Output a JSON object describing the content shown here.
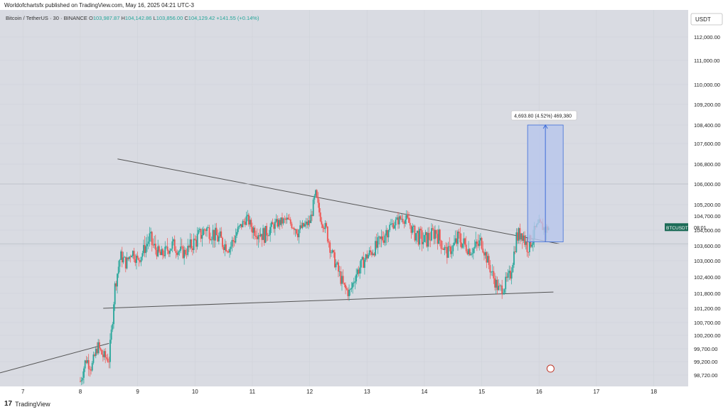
{
  "header": {
    "publisher_line": "Worldofchartsfx published on TradingView.com, May 16, 2025 04:21 UTC-3"
  },
  "legend": {
    "symbol": "Bitcoin / TetherUS · 30 · BINANCE",
    "o_label": "O",
    "o_value": "103,987.87",
    "h_label": "H",
    "h_value": "104,142.86",
    "l_label": "L",
    "l_value": "103,856.00",
    "c_label": "C",
    "c_value": "104,129.42",
    "change": "+141.55 (+0.14%)"
  },
  "footer": {
    "brand": "TradingView",
    "logo": "17"
  },
  "colors": {
    "up": "#26a69a",
    "down": "#ef5350",
    "grid": "#d6d8de",
    "bg": "#ffffff",
    "measure_fill": "#b7c6ec",
    "measure_line": "#3d6dd8",
    "price_tag": "#1b6b57"
  },
  "chart_data": {
    "type": "candlestick",
    "currency_label": "USDT",
    "y_ticks": [
      112000,
      111000,
      110000,
      109200,
      108400,
      107600,
      106800,
      106000,
      105200,
      104700,
      104000,
      103600,
      103000,
      102400,
      101800,
      101200,
      100700,
      100200,
      99700,
      99200,
      98720
    ],
    "y_tick_labels": [
      "112,000.00",
      "111,000.00",
      "110,000.00",
      "109,200.00",
      "108,400.00",
      "107,600.00",
      "106,800.00",
      "106,000.00",
      "105,200.00",
      "104,700.00",
      "104,000.00",
      "103,600.00",
      "103,000.00",
      "102,400.00",
      "101,800.00",
      "101,200.00",
      "100,700.00",
      "100,200.00",
      "99,700.00",
      "99,200.00",
      "98,720.00"
    ],
    "x_ticks": [
      7,
      8,
      9,
      10,
      11,
      12,
      13,
      14,
      15,
      16,
      17,
      18
    ],
    "x_tick_labels": [
      "7",
      "8",
      "9",
      "10",
      "11",
      "12",
      "13",
      "14",
      "15",
      "16",
      "17",
      "18"
    ],
    "x_range": [
      6.6,
      18.6
    ],
    "grid": true,
    "current_price": {
      "symbol": "BTCUSDT",
      "countdown": "08:01",
      "price": 104129.42
    },
    "closes_path": [
      [
        8.0,
        98500
      ],
      [
        8.1,
        99300
      ],
      [
        8.2,
        99000
      ],
      [
        8.3,
        99800
      ],
      [
        8.4,
        99400
      ],
      [
        8.5,
        99300
      ],
      [
        8.55,
        100500
      ],
      [
        8.6,
        102000
      ],
      [
        8.7,
        103200
      ],
      [
        8.8,
        102900
      ],
      [
        8.9,
        103400
      ],
      [
        9.0,
        103000
      ],
      [
        9.2,
        103800
      ],
      [
        9.4,
        103200
      ],
      [
        9.6,
        103600
      ],
      [
        9.8,
        103300
      ],
      [
        10.0,
        103700
      ],
      [
        10.2,
        104100
      ],
      [
        10.4,
        103800
      ],
      [
        10.6,
        103500
      ],
      [
        10.8,
        104200
      ],
      [
        10.9,
        104600
      ],
      [
        11.0,
        104100
      ],
      [
        11.2,
        103900
      ],
      [
        11.4,
        104300
      ],
      [
        11.6,
        104500
      ],
      [
        11.8,
        104000
      ],
      [
        12.0,
        104400
      ],
      [
        12.1,
        105600
      ],
      [
        12.2,
        104500
      ],
      [
        12.3,
        104000
      ],
      [
        12.4,
        103200
      ],
      [
        12.6,
        102000
      ],
      [
        12.7,
        101800
      ],
      [
        12.8,
        102500
      ],
      [
        13.0,
        103200
      ],
      [
        13.2,
        103600
      ],
      [
        13.4,
        104200
      ],
      [
        13.6,
        104600
      ],
      [
        13.7,
        104500
      ],
      [
        13.8,
        104000
      ],
      [
        14.0,
        103700
      ],
      [
        14.2,
        104000
      ],
      [
        14.4,
        103300
      ],
      [
        14.6,
        103800
      ],
      [
        14.8,
        103400
      ],
      [
        15.0,
        103700
      ],
      [
        15.1,
        103000
      ],
      [
        15.2,
        102400
      ],
      [
        15.3,
        101900
      ],
      [
        15.4,
        102100
      ],
      [
        15.5,
        102500
      ],
      [
        15.6,
        103800
      ],
      [
        15.7,
        104000
      ],
      [
        15.8,
        103500
      ],
      [
        15.9,
        103900
      ],
      [
        16.0,
        104300
      ],
      [
        16.1,
        104050
      ],
      [
        16.17,
        104130
      ]
    ],
    "trendlines": [
      {
        "from": [
          8.65,
          107000
        ],
        "to": [
          16.35,
          103650
        ]
      },
      {
        "from": [
          8.4,
          101200
        ],
        "to": [
          16.25,
          101850
        ]
      },
      {
        "from": [
          6.6,
          98800
        ],
        "to": [
          8.5,
          99900
        ]
      }
    ],
    "measure": {
      "label": "4,693.80 (4.52%) 469,380",
      "x_from": 15.8,
      "x_to": 16.42,
      "y_from": 103700,
      "y_to": 108400
    }
  }
}
